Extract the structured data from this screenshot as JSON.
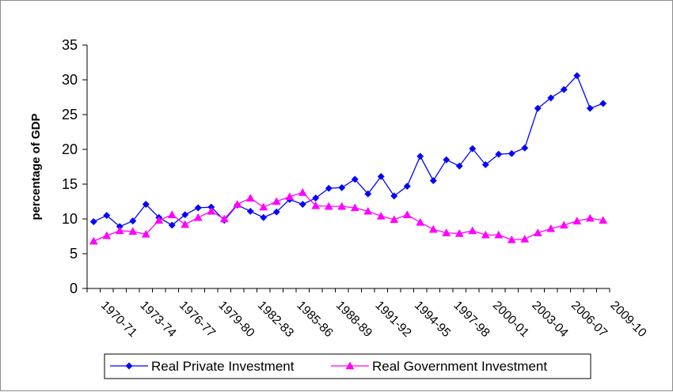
{
  "chart_data": {
    "type": "line",
    "title": "",
    "xlabel": "",
    "ylabel": "percentage of GDP",
    "ylim": [
      0,
      35
    ],
    "yticks": [
      0,
      5,
      10,
      15,
      20,
      25,
      30,
      35
    ],
    "grid": false,
    "legend_position": "bottom",
    "x": [
      "1969-70",
      "1970-71",
      "1971-72",
      "1972-73",
      "1973-74",
      "1974-75",
      "1975-76",
      "1976-77",
      "1977-78",
      "1978-79",
      "1979-80",
      "1980-81",
      "1981-82",
      "1982-83",
      "1983-84",
      "1984-85",
      "1985-86",
      "1986-87",
      "1987-88",
      "1988-89",
      "1989-90",
      "1990-91",
      "1991-92",
      "1992-93",
      "1993-94",
      "1994-95",
      "1995-96",
      "1996-97",
      "1997-98",
      "1998-99",
      "1999-00",
      "2000-01",
      "2001-02",
      "2002-03",
      "2003-04",
      "2004-05",
      "2005-06",
      "2006-07",
      "2007-08",
      "2008-09"
    ],
    "xtick_labels": [
      "1970-71",
      "1973-74",
      "1976-77",
      "1979-80",
      "1982-83",
      "1985-86",
      "1988-89",
      "1991-92",
      "1994-95",
      "1997-98",
      "2000-01",
      "2003-04",
      "2006-07",
      "2009-10"
    ],
    "series": [
      {
        "name": "Real Private Investment",
        "color": "#0000ff",
        "marker": "diamond",
        "values": [
          9.6,
          10.5,
          8.9,
          9.7,
          12.1,
          10.2,
          9.1,
          10.6,
          11.6,
          11.7,
          9.8,
          12.0,
          11.1,
          10.2,
          11.0,
          12.8,
          12.1,
          13.0,
          14.4,
          14.5,
          15.7,
          13.6,
          16.1,
          13.3,
          14.7,
          19.0,
          15.5,
          18.5,
          17.6,
          20.1,
          17.8,
          19.3,
          19.4,
          20.2,
          25.9,
          27.4,
          28.6,
          30.6,
          25.9,
          26.6
        ]
      },
      {
        "name": "Real Government Investment",
        "color": "#ff00ff",
        "marker": "triangle",
        "values": [
          6.8,
          7.6,
          8.3,
          8.2,
          7.8,
          9.8,
          10.6,
          9.2,
          10.2,
          11.1,
          10.0,
          12.1,
          13.0,
          11.7,
          12.5,
          13.2,
          13.8,
          11.9,
          11.8,
          11.8,
          11.6,
          11.1,
          10.4,
          9.9,
          10.6,
          9.5,
          8.5,
          8.0,
          7.9,
          8.3,
          7.7,
          7.7,
          7.0,
          7.1,
          8.0,
          8.6,
          9.1,
          9.7,
          10.1,
          9.8
        ]
      }
    ]
  }
}
